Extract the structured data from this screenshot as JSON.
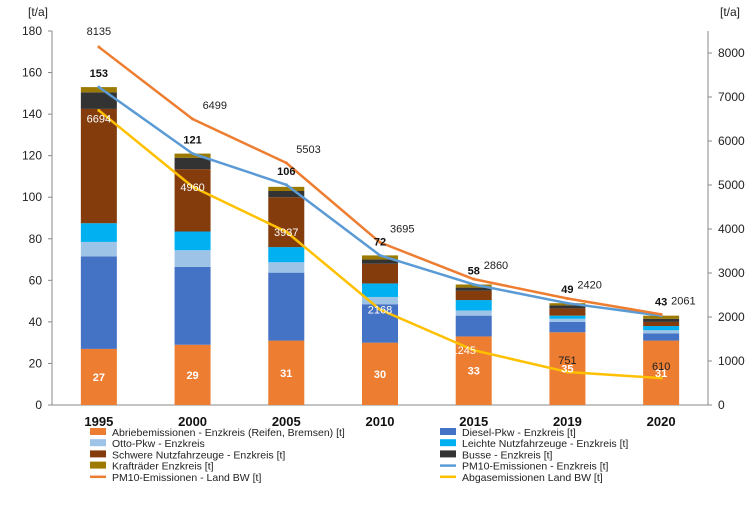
{
  "chart_data": {
    "type": "bar",
    "stacked": true,
    "categories": [
      "1995",
      "2000",
      "2005",
      "2010",
      "2015",
      "2019",
      "2020"
    ],
    "y_left": {
      "unit": "[t/a]",
      "range": [
        0,
        180
      ],
      "ticks": [
        0,
        20,
        40,
        60,
        80,
        100,
        120,
        140,
        160,
        180
      ]
    },
    "y_right": {
      "unit": "[t/a]",
      "range": [
        0,
        8500
      ],
      "ticks": [
        0,
        1000,
        2000,
        3000,
        4000,
        5000,
        6000,
        7000,
        8000
      ]
    },
    "grid": false,
    "legend_position": "bottom",
    "series": [
      {
        "name": "Abriebemissionen - Enzkreis (Reifen, Bremsen) [t]",
        "kind": "bar",
        "axis": "left",
        "color": "#ED7D31",
        "values": [
          27,
          29,
          31,
          30,
          33,
          35,
          31
        ],
        "labels": [
          "27",
          "29",
          "31",
          "30",
          "33",
          "35",
          "31"
        ]
      },
      {
        "name": "Diesel-Pkw - Enzkreis [t]",
        "kind": "bar",
        "axis": "left",
        "color": "#4472C4",
        "values": [
          44.5,
          37.5,
          32.7,
          18.5,
          10,
          5,
          3.5
        ]
      },
      {
        "name": "Otto-Pkw - Enzkreis",
        "kind": "bar",
        "axis": "left",
        "color": "#9DC3E6",
        "values": [
          7,
          8,
          5,
          3.5,
          2.5,
          1.5,
          1.5
        ]
      },
      {
        "name": "Leichte Nutzfahrzeuge - Enzkreis [t]",
        "kind": "bar",
        "axis": "left",
        "color": "#00B0F0",
        "values": [
          9,
          9,
          7.3,
          6.5,
          5,
          1.5,
          2
        ]
      },
      {
        "name": "Schwere Nutzfahrzeuge - Enzkreis [t]",
        "kind": "bar",
        "axis": "left",
        "color": "#843C0C",
        "values": [
          55,
          30,
          24,
          9.5,
          4.5,
          3.5,
          2
        ]
      },
      {
        "name": "Busse - Enzkreis [t]",
        "kind": "bar",
        "axis": "left",
        "color": "#333333",
        "values": [
          8,
          5.5,
          3,
          2,
          1.5,
          1.5,
          1.5
        ]
      },
      {
        "name": "Krafträder Enzkreis [t]",
        "kind": "bar",
        "axis": "left",
        "color": "#9C7A00",
        "values": [
          2.5,
          2,
          2,
          2,
          1.5,
          1,
          1.5
        ]
      },
      {
        "name": "PM10-Emissionen - Enzkreis [t]",
        "kind": "line",
        "axis": "left",
        "color": "#5B9BD5",
        "values": [
          153,
          121,
          106,
          72,
          58,
          49,
          43
        ],
        "labels": [
          "153",
          "121",
          "106",
          "72",
          "58",
          "49",
          "43"
        ]
      },
      {
        "name": "PM10-Emissionen - Land BW [t]",
        "kind": "line",
        "axis": "right",
        "color": "#ED7D31",
        "values": [
          8135,
          6499,
          5503,
          3695,
          2860,
          2420,
          2061
        ],
        "labels": [
          "8135",
          "6499",
          "5503",
          "3695",
          "2860",
          "2420",
          "2061"
        ]
      },
      {
        "name": "Abgasemissionen Land BW [t]",
        "kind": "line",
        "axis": "right",
        "color": "#FFC000",
        "values": [
          6694,
          4960,
          3937,
          2168,
          1245,
          751,
          610
        ],
        "labels": [
          "6694",
          "4960",
          "3937",
          "2168",
          "1245",
          "751",
          "610"
        ]
      }
    ]
  }
}
